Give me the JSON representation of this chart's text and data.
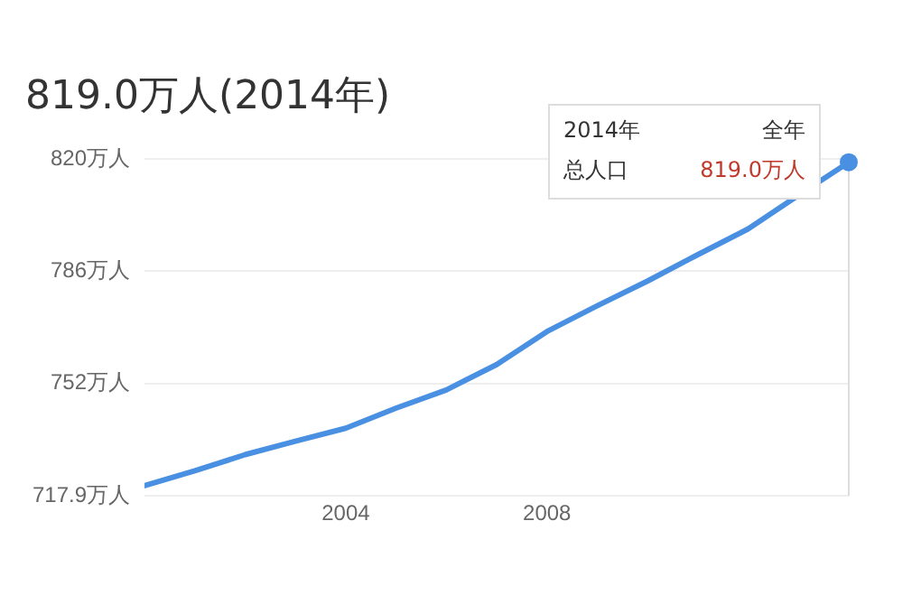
{
  "chart_data": {
    "type": "line",
    "title": "819.0万人(2014年)",
    "x": [
      2000,
      2001,
      2002,
      2003,
      2004,
      2005,
      2006,
      2007,
      2008,
      2009,
      2010,
      2011,
      2012,
      2013,
      2014
    ],
    "series": [
      {
        "color": "#4a90e2",
        "values": [
          721,
          725.5,
          730.4,
          734.5,
          738.4,
          744.5,
          750,
          757.7,
          767.7,
          775.5,
          783,
          791,
          798.8,
          809,
          819.0
        ]
      }
    ],
    "xlim": [
      2000,
      2014
    ],
    "xticks": [
      2004,
      2008
    ],
    "ylim": [
      717.9,
      820
    ],
    "yticks": [
      {
        "value": 717.9,
        "label": "717.9万人"
      },
      {
        "value": 752,
        "label": "752万人"
      },
      {
        "value": 786,
        "label": "786万人"
      },
      {
        "value": 820,
        "label": "820万人"
      }
    ],
    "grid": "y",
    "legend": false,
    "marker": "none",
    "line_style": "solid",
    "annotations": [
      "2014年",
      "全年",
      "总人口",
      "819.0万人"
    ]
  }
}
